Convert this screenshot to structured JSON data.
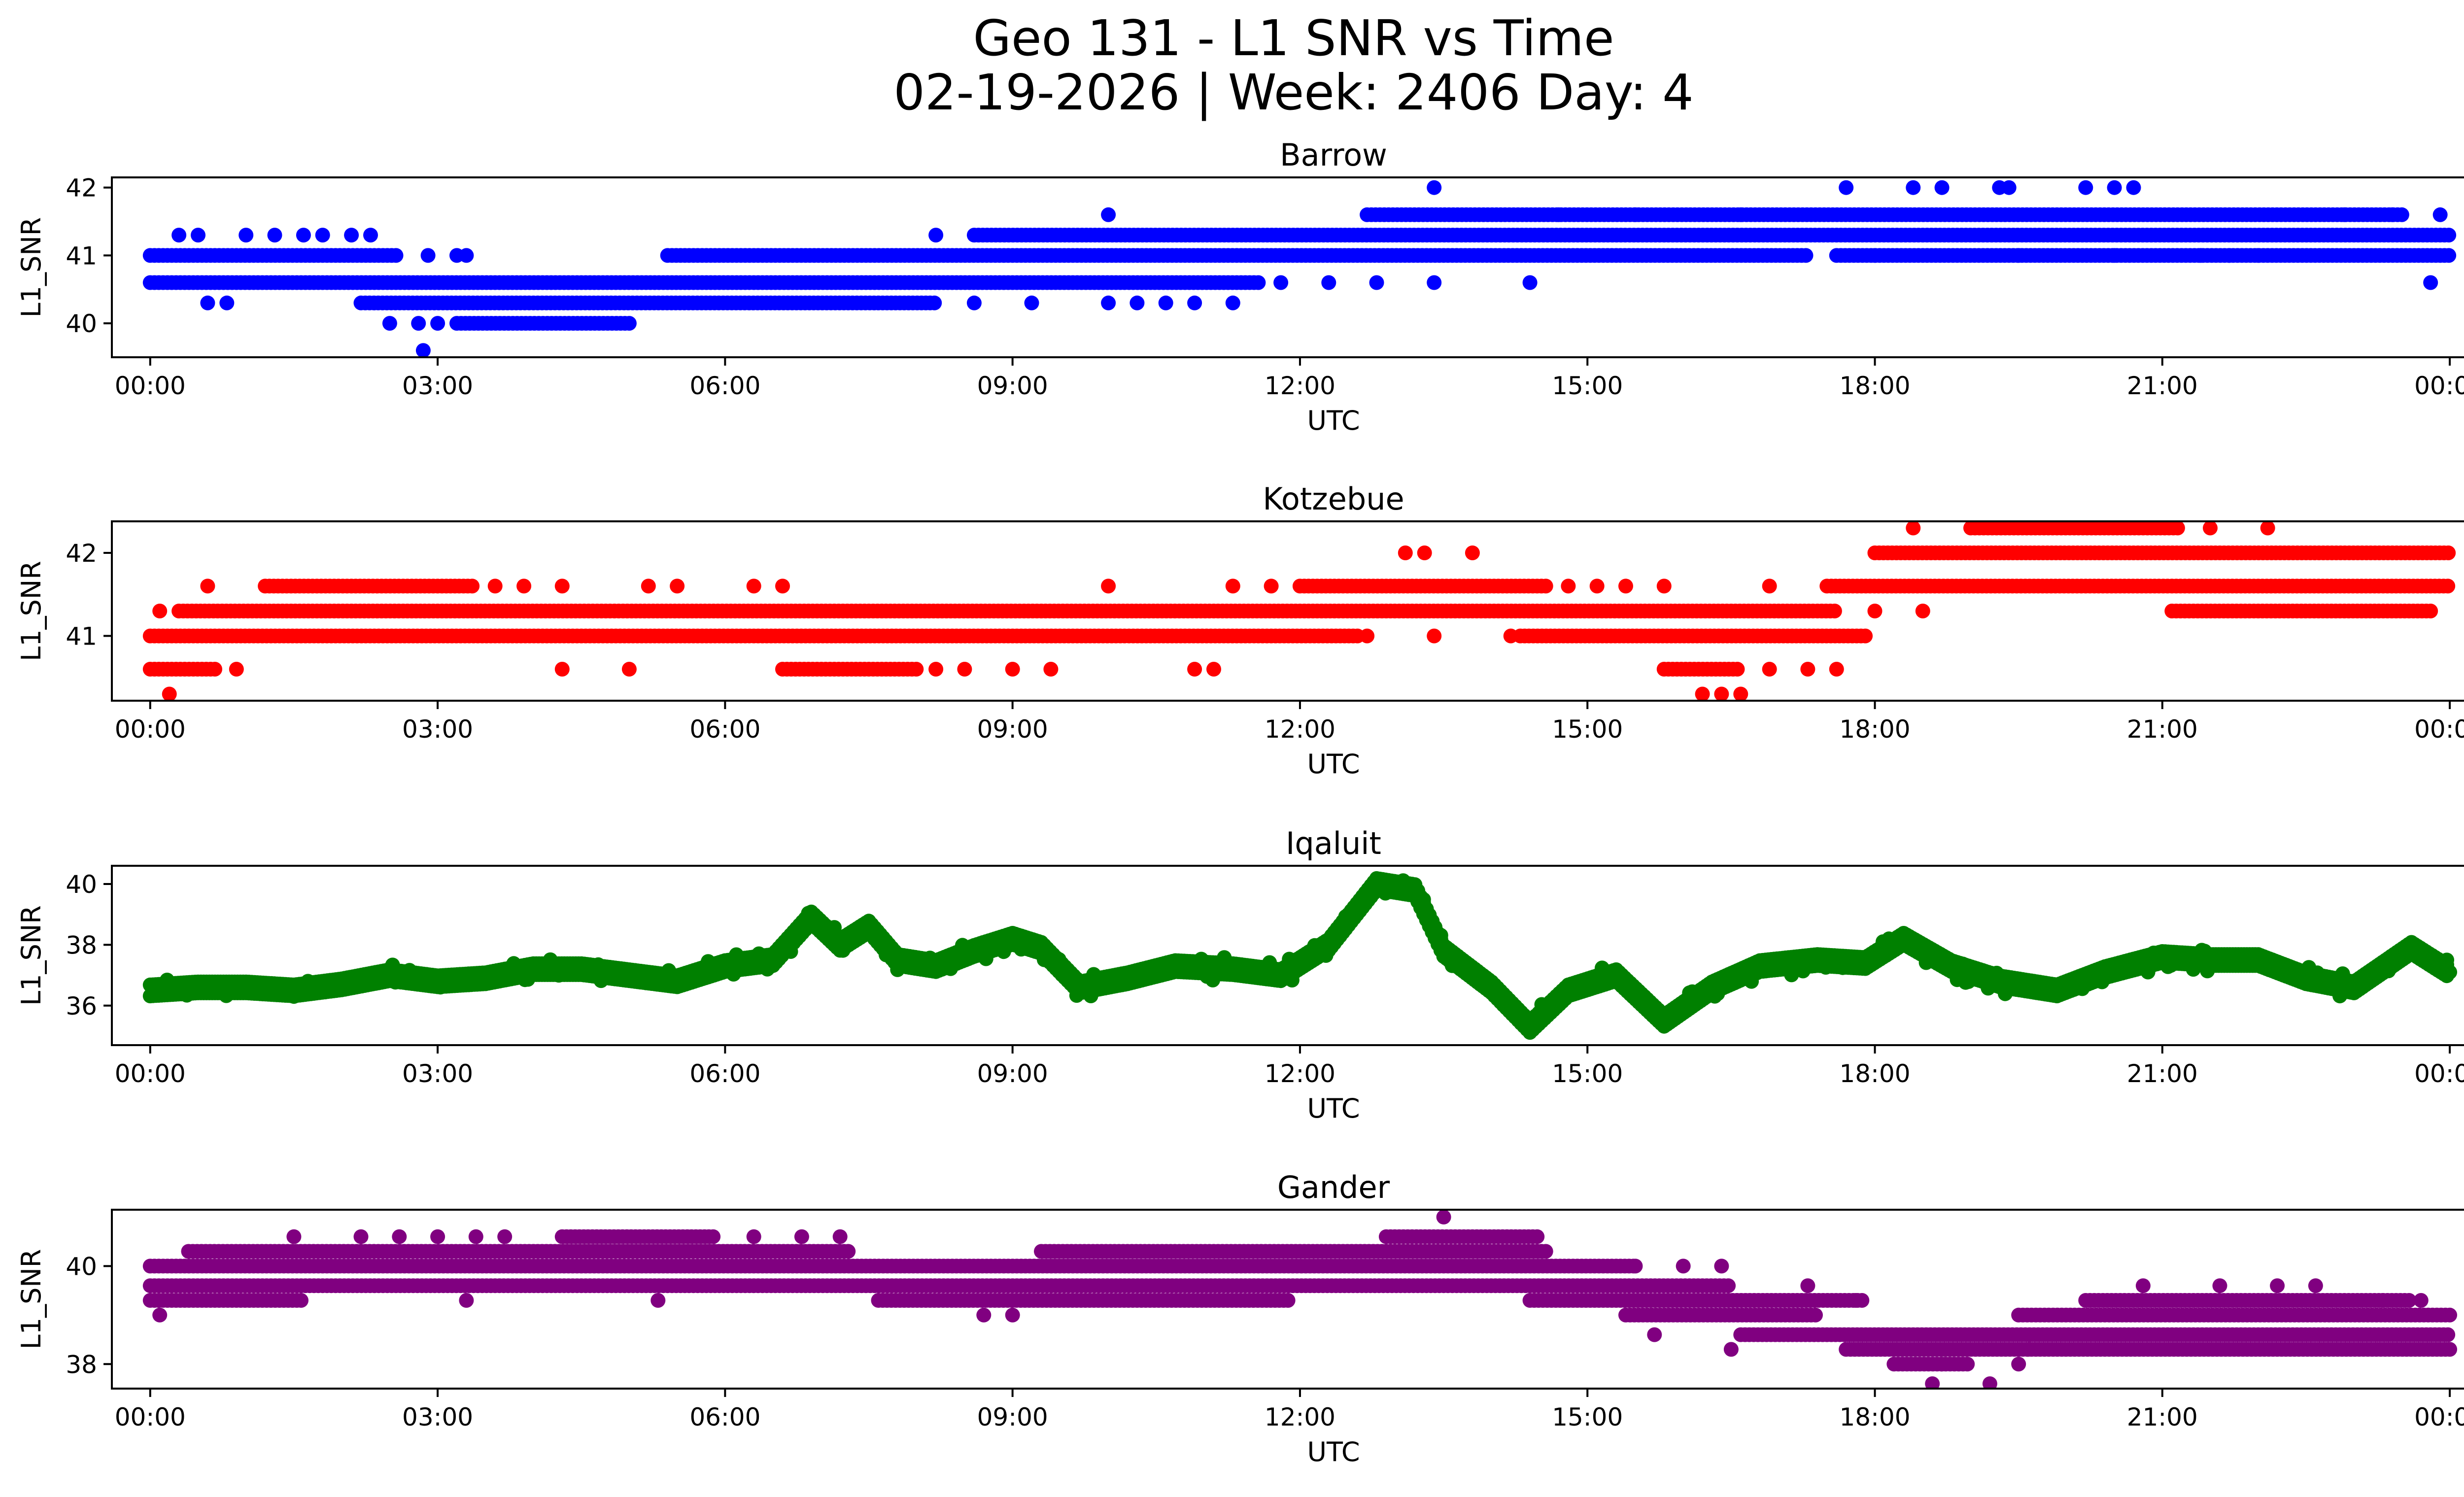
{
  "figure": {
    "title_line1": "Geo 131 - L1 SNR vs Time",
    "title_line2": "02-19-2026 | Week: 2406 Day: 4"
  },
  "chart_data": [
    {
      "type": "scatter",
      "title": "Barrow",
      "xlabel": "UTC",
      "ylabel": "L1_SNR",
      "color": "#0000ff",
      "xlim": [
        -0.4,
        25.1
      ],
      "ylim": [
        39.5,
        42.15
      ],
      "yticks": [
        40,
        41,
        42
      ],
      "xticks": [
        0,
        3,
        6,
        9,
        12,
        15,
        18,
        21,
        24
      ],
      "xtick_labels": [
        "00:00",
        "03:00",
        "06:00",
        "09:00",
        "12:00",
        "15:00",
        "18:00",
        "21:00",
        "00:00"
      ],
      "levels": [
        {
          "y": 41.0,
          "start": 0.0,
          "end": 2.6
        },
        {
          "y": 40.6,
          "start": 0.0,
          "end": 11.6
        },
        {
          "y": 40.3,
          "start": 2.2,
          "end": 8.2
        },
        {
          "y": 40.0,
          "start": 3.2,
          "end": 5.0
        },
        {
          "y": 41.0,
          "start": 5.4,
          "end": 17.3
        },
        {
          "y": 41.3,
          "start": 8.6,
          "end": 24.0
        },
        {
          "y": 41.0,
          "start": 17.6,
          "end": 24.0
        },
        {
          "y": 41.6,
          "start": 12.7,
          "end": 23.5
        }
      ],
      "points": [
        [
          0.3,
          41.3
        ],
        [
          0.5,
          41.3
        ],
        [
          0.6,
          40.3
        ],
        [
          0.8,
          40.3
        ],
        [
          1.0,
          41.3
        ],
        [
          1.3,
          41.3
        ],
        [
          1.6,
          41.3
        ],
        [
          1.8,
          41.3
        ],
        [
          2.1,
          41.3
        ],
        [
          2.3,
          41.3
        ],
        [
          2.8,
          40.0
        ],
        [
          2.5,
          40.0
        ],
        [
          2.85,
          39.6
        ],
        [
          3.0,
          40.0
        ],
        [
          2.9,
          41.0
        ],
        [
          3.2,
          41.0
        ],
        [
          3.3,
          41.0
        ],
        [
          8.2,
          41.3
        ],
        [
          8.6,
          40.3
        ],
        [
          9.2,
          40.3
        ],
        [
          10.0,
          40.3
        ],
        [
          10.3,
          40.3
        ],
        [
          10.6,
          40.3
        ],
        [
          10.9,
          40.3
        ],
        [
          11.3,
          40.3
        ],
        [
          10.0,
          41.6
        ],
        [
          11.8,
          40.6
        ],
        [
          12.3,
          40.6
        ],
        [
          12.8,
          40.6
        ],
        [
          13.4,
          40.6
        ],
        [
          13.4,
          42.0
        ],
        [
          14.4,
          40.6
        ],
        [
          14.7,
          41.6
        ],
        [
          15.5,
          41.6
        ],
        [
          16.6,
          41.6
        ],
        [
          17.7,
          42.0
        ],
        [
          18.4,
          42.0
        ],
        [
          18.7,
          42.0
        ],
        [
          19.3,
          42.0
        ],
        [
          19.4,
          42.0
        ],
        [
          20.2,
          42.0
        ],
        [
          20.5,
          42.0
        ],
        [
          20.7,
          42.0
        ],
        [
          20.5,
          41.0
        ],
        [
          19.5,
          41.0
        ],
        [
          18.0,
          41.0
        ],
        [
          21.4,
          41.0
        ],
        [
          21.7,
          41.0
        ],
        [
          22.0,
          41.0
        ],
        [
          22.9,
          41.6
        ],
        [
          23.4,
          41.6
        ],
        [
          23.8,
          40.6
        ],
        [
          23.9,
          41.6
        ]
      ]
    },
    {
      "type": "scatter",
      "title": "Kotzebue",
      "xlabel": "UTC",
      "ylabel": "L1_SNR",
      "color": "#ff0000",
      "xlim": [
        -0.4,
        25.1
      ],
      "ylim": [
        40.22,
        42.38
      ],
      "yticks": [
        41,
        42
      ],
      "xticks": [
        0,
        3,
        6,
        9,
        12,
        15,
        18,
        21,
        24
      ],
      "xtick_labels": [
        "00:00",
        "03:00",
        "06:00",
        "09:00",
        "12:00",
        "15:00",
        "18:00",
        "21:00",
        "00:00"
      ],
      "levels": [
        {
          "y": 41.0,
          "start": 0.0,
          "end": 12.6
        },
        {
          "y": 41.3,
          "start": 0.3,
          "end": 17.6
        },
        {
          "y": 41.6,
          "start": 1.2,
          "end": 3.4
        },
        {
          "y": 40.6,
          "start": 0.0,
          "end": 0.7
        },
        {
          "y": 40.6,
          "start": 6.6,
          "end": 8.0
        },
        {
          "y": 41.6,
          "start": 12.0,
          "end": 14.6
        },
        {
          "y": 41.0,
          "start": 14.3,
          "end": 17.9
        },
        {
          "y": 40.6,
          "start": 15.8,
          "end": 16.6
        },
        {
          "y": 41.6,
          "start": 17.5,
          "end": 24.0
        },
        {
          "y": 42.0,
          "start": 18.0,
          "end": 24.0
        },
        {
          "y": 42.3,
          "start": 19.0,
          "end": 21.2
        },
        {
          "y": 41.3,
          "start": 21.1,
          "end": 23.8
        }
      ],
      "points": [
        [
          0.2,
          40.3
        ],
        [
          0.1,
          41.3
        ],
        [
          0.6,
          41.6
        ],
        [
          0.9,
          40.6
        ],
        [
          3.6,
          41.6
        ],
        [
          3.9,
          41.6
        ],
        [
          4.3,
          41.6
        ],
        [
          4.3,
          40.6
        ],
        [
          5.0,
          40.6
        ],
        [
          5.2,
          41.6
        ],
        [
          5.5,
          41.6
        ],
        [
          6.3,
          41.6
        ],
        [
          6.6,
          41.6
        ],
        [
          8.2,
          40.6
        ],
        [
          8.5,
          40.6
        ],
        [
          9.0,
          40.6
        ],
        [
          9.4,
          40.6
        ],
        [
          10.0,
          41.6
        ],
        [
          10.9,
          40.6
        ],
        [
          11.1,
          40.6
        ],
        [
          11.3,
          41.6
        ],
        [
          11.7,
          41.6
        ],
        [
          12.7,
          41.0
        ],
        [
          13.1,
          42.0
        ],
        [
          13.3,
          42.0
        ],
        [
          13.8,
          42.0
        ],
        [
          13.4,
          41.0
        ],
        [
          14.2,
          41.0
        ],
        [
          14.8,
          41.6
        ],
        [
          15.1,
          41.6
        ],
        [
          15.4,
          41.6
        ],
        [
          15.8,
          41.6
        ],
        [
          16.2,
          40.3
        ],
        [
          16.4,
          40.3
        ],
        [
          16.6,
          40.3
        ],
        [
          16.9,
          41.6
        ],
        [
          16.9,
          40.6
        ],
        [
          17.3,
          40.6
        ],
        [
          17.6,
          40.6
        ],
        [
          18.4,
          42.3
        ],
        [
          22.1,
          42.3
        ],
        [
          21.5,
          42.3
        ],
        [
          18.0,
          41.3
        ],
        [
          18.5,
          41.3
        ]
      ]
    },
    {
      "type": "scatter",
      "title": "Iqaluit",
      "xlabel": "UTC",
      "ylabel": "L1_SNR",
      "color": "#008000",
      "xlim": [
        -0.4,
        25.1
      ],
      "ylim": [
        34.7,
        40.6
      ],
      "yticks": [
        36,
        38,
        40
      ],
      "xticks": [
        0,
        3,
        6,
        9,
        12,
        15,
        18,
        21,
        24
      ],
      "xtick_labels": [
        "00:00",
        "03:00",
        "06:00",
        "09:00",
        "12:00",
        "15:00",
        "18:00",
        "21:00",
        "00:00"
      ],
      "trend": [
        [
          0.0,
          36.5
        ],
        [
          0.5,
          36.6
        ],
        [
          1.0,
          36.6
        ],
        [
          1.5,
          36.5
        ],
        [
          2.0,
          36.7
        ],
        [
          2.5,
          37.0
        ],
        [
          3.0,
          36.8
        ],
        [
          3.5,
          36.9
        ],
        [
          4.0,
          37.2
        ],
        [
          4.5,
          37.2
        ],
        [
          5.0,
          37.0
        ],
        [
          5.5,
          36.8
        ],
        [
          6.0,
          37.3
        ],
        [
          6.5,
          37.5
        ],
        [
          6.9,
          38.9
        ],
        [
          7.2,
          38.0
        ],
        [
          7.5,
          38.6
        ],
        [
          7.8,
          37.5
        ],
        [
          8.2,
          37.3
        ],
        [
          8.6,
          37.8
        ],
        [
          9.0,
          38.2
        ],
        [
          9.3,
          37.9
        ],
        [
          9.7,
          36.6
        ],
        [
          10.2,
          36.9
        ],
        [
          10.7,
          37.3
        ],
        [
          11.3,
          37.2
        ],
        [
          11.8,
          37.0
        ],
        [
          12.3,
          38.0
        ],
        [
          12.8,
          40.0
        ],
        [
          13.2,
          39.8
        ],
        [
          13.5,
          37.8
        ],
        [
          14.0,
          36.6
        ],
        [
          14.4,
          35.3
        ],
        [
          14.8,
          36.5
        ],
        [
          15.3,
          37.0
        ],
        [
          15.8,
          35.5
        ],
        [
          16.3,
          36.6
        ],
        [
          16.8,
          37.3
        ],
        [
          17.4,
          37.5
        ],
        [
          17.9,
          37.4
        ],
        [
          18.3,
          38.2
        ],
        [
          18.8,
          37.3
        ],
        [
          19.3,
          36.8
        ],
        [
          19.9,
          36.5
        ],
        [
          20.4,
          37.1
        ],
        [
          21.0,
          37.6
        ],
        [
          21.5,
          37.5
        ],
        [
          22.0,
          37.5
        ],
        [
          22.5,
          36.9
        ],
        [
          23.0,
          36.6
        ],
        [
          23.6,
          37.9
        ],
        [
          24.0,
          37.1
        ]
      ]
    },
    {
      "type": "scatter",
      "title": "Gander",
      "xlabel": "UTC",
      "ylabel": "L1_SNR",
      "color": "#800080",
      "xlim": [
        -0.4,
        25.1
      ],
      "ylim": [
        37.5,
        41.15
      ],
      "yticks": [
        38,
        40
      ],
      "xticks": [
        0,
        3,
        6,
        9,
        12,
        15,
        18,
        21,
        24
      ],
      "xtick_labels": [
        "00:00",
        "03:00",
        "06:00",
        "09:00",
        "12:00",
        "15:00",
        "18:00",
        "21:00",
        "00:00"
      ],
      "levels": [
        {
          "y": 40.0,
          "start": 0.0,
          "end": 15.5
        },
        {
          "y": 39.6,
          "start": 0.0,
          "end": 16.5
        },
        {
          "y": 39.3,
          "start": 0.0,
          "end": 1.6
        },
        {
          "y": 40.3,
          "start": 0.4,
          "end": 7.3
        },
        {
          "y": 40.3,
          "start": 9.3,
          "end": 14.6
        },
        {
          "y": 40.6,
          "start": 4.3,
          "end": 5.9
        },
        {
          "y": 40.6,
          "start": 12.9,
          "end": 14.5
        },
        {
          "y": 39.3,
          "start": 7.6,
          "end": 11.9
        },
        {
          "y": 39.3,
          "start": 14.4,
          "end": 17.9
        },
        {
          "y": 39.0,
          "start": 15.4,
          "end": 17.4
        },
        {
          "y": 38.6,
          "start": 16.6,
          "end": 24.0
        },
        {
          "y": 38.3,
          "start": 17.7,
          "end": 24.0
        },
        {
          "y": 39.0,
          "start": 19.5,
          "end": 24.0
        },
        {
          "y": 39.3,
          "start": 20.2,
          "end": 23.6
        },
        {
          "y": 38.0,
          "start": 18.2,
          "end": 19.0
        }
      ],
      "points": [
        [
          0.1,
          39.0
        ],
        [
          1.5,
          40.6
        ],
        [
          2.2,
          40.6
        ],
        [
          2.6,
          40.6
        ],
        [
          3.0,
          40.6
        ],
        [
          3.4,
          40.6
        ],
        [
          3.7,
          40.6
        ],
        [
          6.3,
          40.6
        ],
        [
          6.8,
          40.6
        ],
        [
          7.2,
          40.6
        ],
        [
          3.3,
          39.3
        ],
        [
          5.3,
          39.3
        ],
        [
          9.0,
          39.0
        ],
        [
          8.7,
          39.0
        ],
        [
          13.5,
          41.0
        ],
        [
          15.5,
          40.0
        ],
        [
          16.0,
          40.0
        ],
        [
          16.4,
          40.0
        ],
        [
          16.5,
          38.3
        ],
        [
          15.7,
          38.6
        ],
        [
          17.3,
          39.6
        ],
        [
          17.8,
          39.3
        ],
        [
          18.6,
          37.6
        ],
        [
          19.2,
          37.6
        ],
        [
          18.7,
          38.0
        ],
        [
          19.5,
          38.0
        ],
        [
          19.6,
          38.3
        ],
        [
          20.8,
          39.6
        ],
        [
          21.6,
          39.6
        ],
        [
          22.2,
          39.6
        ],
        [
          22.6,
          39.6
        ],
        [
          23.3,
          39.3
        ],
        [
          23.7,
          39.3
        ]
      ]
    }
  ]
}
